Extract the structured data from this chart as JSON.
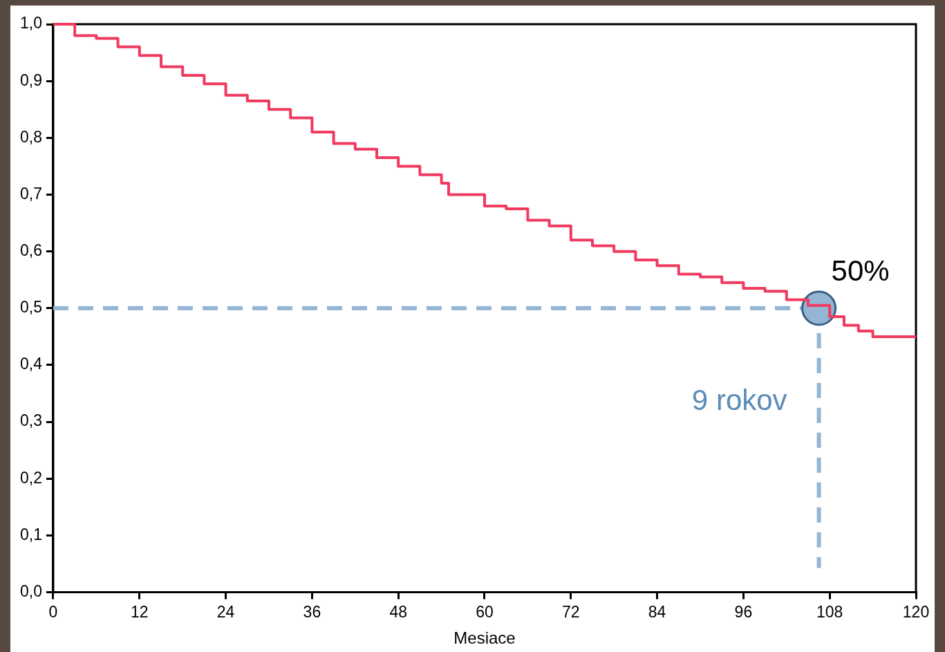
{
  "chart_data": {
    "type": "step",
    "xlabel": "Mesiace",
    "xlim": [
      0,
      120
    ],
    "xticks": [
      0,
      12,
      24,
      36,
      48,
      60,
      72,
      84,
      96,
      108,
      120
    ],
    "ylim": [
      0,
      1
    ],
    "yticks": [
      {
        "value": 0,
        "label": "0,0"
      },
      {
        "value": 0.1,
        "label": "0,1"
      },
      {
        "value": 0.2,
        "label": "0,2"
      },
      {
        "value": 0.3,
        "label": "0,3"
      },
      {
        "value": 0.4,
        "label": "0,4"
      },
      {
        "value": 0.5,
        "label": "0,5"
      },
      {
        "value": 0.6,
        "label": "0,6"
      },
      {
        "value": 0.7,
        "label": "0,7"
      },
      {
        "value": 0.8,
        "label": "0,8"
      },
      {
        "value": 0.9,
        "label": "0,9"
      },
      {
        "value": 1,
        "label": "1,0"
      }
    ],
    "grid": false,
    "legend": false,
    "line_style": "solid",
    "series": [
      {
        "color": "#f03a5f",
        "x": [
          0,
          3,
          6,
          9,
          12,
          15,
          18,
          21,
          24,
          27,
          30,
          33,
          36,
          39,
          42,
          45,
          48,
          51,
          54,
          55,
          60,
          63,
          66,
          69,
          72,
          75,
          78,
          81,
          84,
          87,
          90,
          93,
          96,
          99,
          102,
          105,
          108,
          110,
          112,
          114,
          120
        ],
        "values": [
          1.0,
          0.98,
          0.975,
          0.96,
          0.945,
          0.925,
          0.91,
          0.895,
          0.875,
          0.865,
          0.85,
          0.835,
          0.81,
          0.79,
          0.78,
          0.765,
          0.75,
          0.735,
          0.72,
          0.7,
          0.68,
          0.675,
          0.655,
          0.645,
          0.62,
          0.61,
          0.6,
          0.585,
          0.575,
          0.56,
          0.555,
          0.545,
          0.535,
          0.53,
          0.515,
          0.505,
          0.485,
          0.47,
          0.46,
          0.45,
          0.45
        ]
      },
      {
        "type": "scatter",
        "marker": "circle",
        "color": "#94b5d3",
        "x": [
          106.5
        ],
        "values": [
          0.5
        ]
      }
    ],
    "ref_lines": [
      {
        "axis": "y",
        "value": 0.5,
        "color": "#94b5d3",
        "line_style": "dashed"
      },
      {
        "axis": "x",
        "value": 106.5,
        "label": "9 rokov",
        "color": "#94b5d3",
        "line_style": "dashed"
      }
    ],
    "annotations": [
      {
        "text": "50%",
        "x": 106.5,
        "y": 0.5
      }
    ]
  }
}
